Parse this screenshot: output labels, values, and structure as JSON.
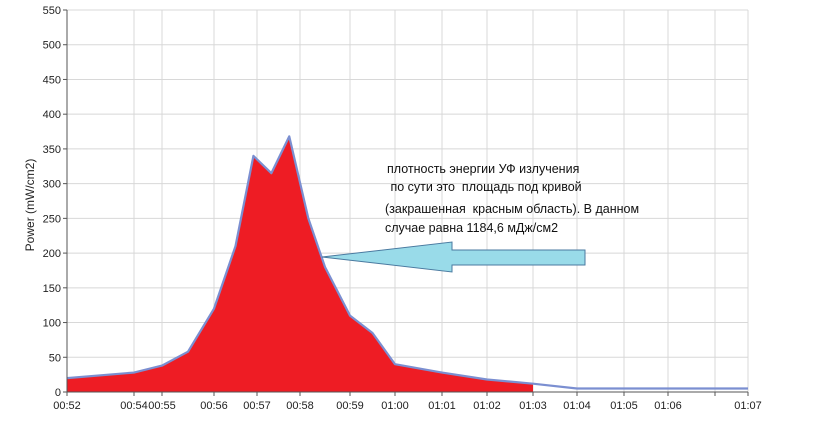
{
  "chart_data": {
    "type": "area",
    "title": "",
    "xlabel": "",
    "ylabel": "Power (mW/cm2)",
    "ylim": [
      0,
      550
    ],
    "y_ticks": [
      0,
      50,
      100,
      150,
      200,
      250,
      300,
      350,
      400,
      450,
      500,
      550
    ],
    "x_ticks": [
      "00:52",
      "00:54",
      "00:55",
      "00:56",
      "00:57",
      "00:58",
      "00:59",
      "01:00",
      "01:01",
      "01:02",
      "01:03",
      "01:04",
      "01:05",
      "01:06",
      "",
      "01:07"
    ],
    "grid": true,
    "colors": {
      "fill": "#ee1c24",
      "line": "#7b8fd1",
      "grid": "#d8d8d8",
      "arrow": "#99dbe9"
    },
    "series": [
      {
        "x": [
          "00:52",
          "00:54",
          "00:55",
          "00:55:30",
          "00:56",
          "00:56:30",
          "00:56:55",
          "00:57:20",
          "00:57:45",
          "00:58:10",
          "00:58:30",
          "00:59",
          "00:59:30",
          "01:00",
          "01:01",
          "01:02",
          "01:03",
          "01:04",
          "01:05",
          "01:06",
          "01:07"
        ],
        "values": [
          20,
          28,
          38,
          58,
          120,
          210,
          340,
          315,
          368,
          250,
          180,
          110,
          85,
          40,
          28,
          18,
          12,
          5,
          5,
          5,
          5
        ]
      }
    ],
    "annotations": [
      "плотность энергии УФ излучения",
      " по сути это  площадь под кривой",
      "(закрашенная  красным область). В данном",
      "случае равна 1184,6 мДж/см2"
    ]
  }
}
